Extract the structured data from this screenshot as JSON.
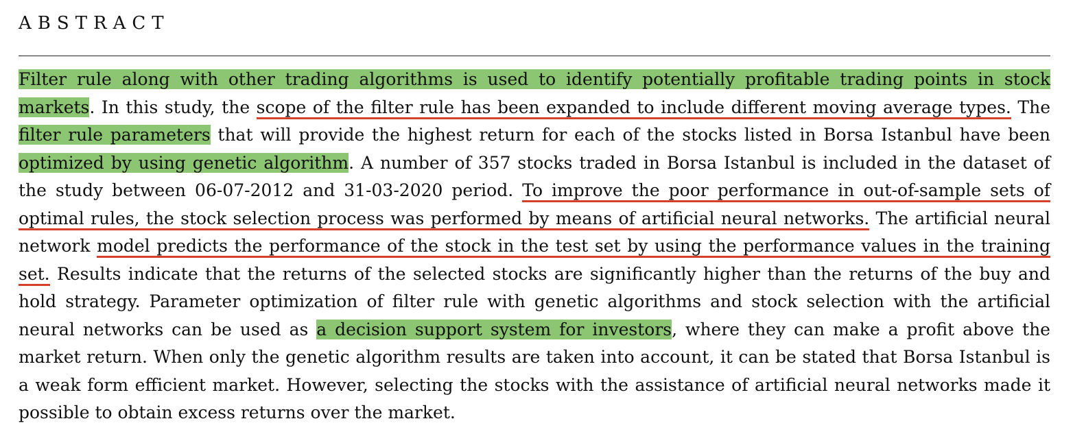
{
  "abstract": {
    "heading": "ABSTRACT",
    "segments": [
      {
        "text": "Filter rule along with other trading algorithms is used to identify potentially profitable trading points in stock markets",
        "style": "highlight"
      },
      {
        "text": ". In this study, the ",
        "style": "plain"
      },
      {
        "text": "scope of the filter rule has been expanded to include different moving average types.",
        "style": "underline"
      },
      {
        "text": " The ",
        "style": "plain"
      },
      {
        "text": "filter rule parameters",
        "style": "highlight"
      },
      {
        "text": " that will provide the highest return for each of the stocks listed in Borsa Istanbul have been ",
        "style": "plain"
      },
      {
        "text": "optimized by using genetic algorithm",
        "style": "highlight"
      },
      {
        "text": ". A number of 357 stocks traded in Borsa Istanbul is included in the dataset of the study between 06-07-2012 and 31-03-2020 period. ",
        "style": "plain"
      },
      {
        "text": "To improve the poor performance in out-of-sample sets of optimal rules, the stock selection process was performed by means of artificial neural networks.",
        "style": "underline"
      },
      {
        "text": " The artificial neural network ",
        "style": "plain"
      },
      {
        "text": "model predicts the performance of the stock in the test set by using the performance values in the training set.",
        "style": "underline"
      },
      {
        "text": " Results indicate that the returns of the selected stocks are significantly higher than the returns of the buy and hold strategy. Parameter optimization of filter rule with genetic algorithms and stock selection with the artificial neural networks can be used as ",
        "style": "plain"
      },
      {
        "text": "a decision support system for investors",
        "style": "highlight"
      },
      {
        "text": ", where they can make a profit above the market return. When only the genetic algorithm results are taken into account, it can be stated that Borsa Istanbul is a weak form efficient market. However, selecting the stocks with the assistance of artificial neural networks made it possible to obtain excess returns over the market.",
        "style": "plain"
      }
    ]
  },
  "colors": {
    "highlight": "#8dc673",
    "underline": "#d4402a",
    "text": "#111111"
  }
}
